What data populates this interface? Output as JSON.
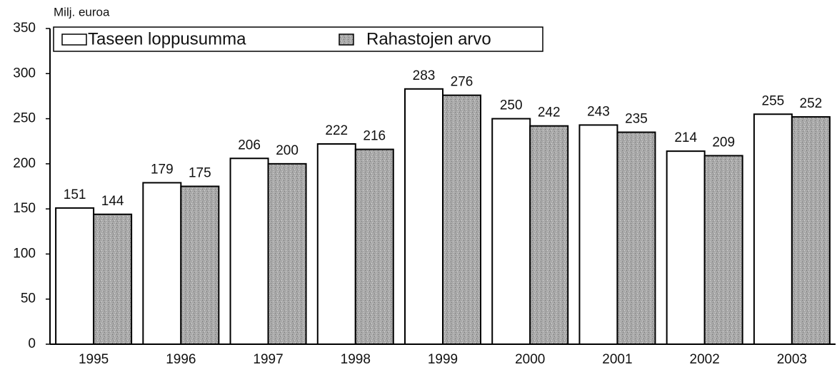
{
  "chart_data": {
    "type": "bar",
    "y_label": "Milj. euroa",
    "categories": [
      "1995",
      "1996",
      "1997",
      "1998",
      "1999",
      "2000",
      "2001",
      "2002",
      "2003"
    ],
    "series": [
      {
        "name": "Taseen loppusumma",
        "color": "#ffffff",
        "values": [
          151,
          179,
          206,
          222,
          283,
          250,
          243,
          214,
          255
        ]
      },
      {
        "name": "Rahastojen arvo",
        "color": "#a9a9a9",
        "values": [
          144,
          175,
          200,
          216,
          276,
          242,
          235,
          209,
          252
        ]
      }
    ],
    "ylim": [
      0,
      350
    ],
    "yticks": [
      0,
      50,
      100,
      150,
      200,
      250,
      300,
      350
    ],
    "grid": false,
    "legend": "top-left"
  }
}
